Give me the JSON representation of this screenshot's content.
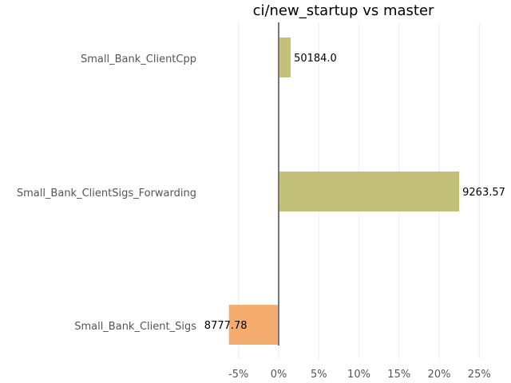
{
  "chart_data": {
    "type": "bar",
    "orientation": "horizontal",
    "title": "ci/new_startup vs master",
    "xlabel": "",
    "ylabel": "",
    "categories": [
      "Small_Bank_ClientCpp",
      "Small_Bank_ClientSigs_Forwarding",
      "Small_Bank_Client_Sigs"
    ],
    "values": [
      1.5,
      22.5,
      -6.2
    ],
    "data_labels": [
      "50184.0",
      "9263.57",
      "8777.78"
    ],
    "colors": [
      "#c3c07a",
      "#c3c07a",
      "#f4ad6e"
    ],
    "xlim": [
      -7,
      28
    ],
    "xticks": [
      -5,
      0,
      5,
      10,
      15,
      20,
      25
    ],
    "xtick_labels": [
      "-5%",
      "0%",
      "5%",
      "10%",
      "15%",
      "20%",
      "25%"
    ],
    "grid": true,
    "legend": "none"
  }
}
